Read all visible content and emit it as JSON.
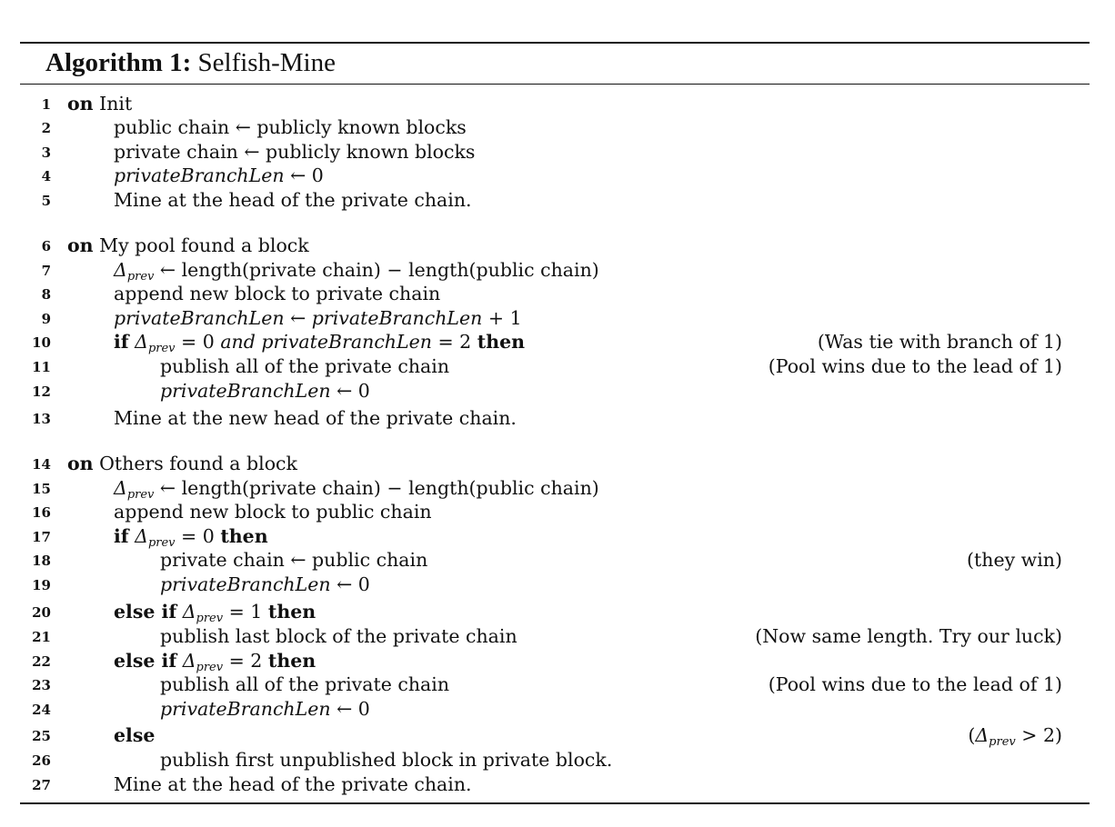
{
  "title": {
    "label": "Algorithm 1:",
    "name": "Selfish-Mine"
  },
  "lines": [
    {
      "n": "1",
      "parts": [
        {
          "k": "kw",
          "t": "on"
        },
        {
          "k": "t",
          "t": " Init"
        }
      ]
    },
    {
      "n": "2",
      "parts": [
        {
          "k": "t",
          "t": "public chain ← publicly known blocks"
        }
      ]
    },
    {
      "n": "3",
      "parts": [
        {
          "k": "t",
          "t": "private chain ← publicly known blocks"
        }
      ]
    },
    {
      "n": "4",
      "parts": [
        {
          "k": "it",
          "t": "privateBranchLen"
        },
        {
          "k": "t",
          "t": " ← 0"
        }
      ]
    },
    {
      "n": "5",
      "parts": [
        {
          "k": "t",
          "t": "Mine at the head of the private chain."
        }
      ]
    },
    {
      "n": "6",
      "parts": [
        {
          "k": "kw",
          "t": "on"
        },
        {
          "k": "t",
          "t": " My pool found a block"
        }
      ]
    },
    {
      "n": "7",
      "parts": [
        {
          "k": "it",
          "t": "Δ"
        },
        {
          "k": "sub",
          "t": "prev"
        },
        {
          "k": "t",
          "t": " ← length(private chain) − length(public chain)"
        }
      ]
    },
    {
      "n": "8",
      "parts": [
        {
          "k": "t",
          "t": "append new block to private chain"
        }
      ]
    },
    {
      "n": "9",
      "parts": [
        {
          "k": "it",
          "t": "privateBranchLen"
        },
        {
          "k": "t",
          "t": " ← "
        },
        {
          "k": "it",
          "t": "privateBranchLen"
        },
        {
          "k": "t",
          "t": " + 1"
        }
      ]
    },
    {
      "n": "10",
      "parts": [
        {
          "k": "kw",
          "t": "if"
        },
        {
          "k": "t",
          "t": " "
        },
        {
          "k": "it",
          "t": "Δ"
        },
        {
          "k": "sub",
          "t": "prev"
        },
        {
          "k": "t",
          "t": " = 0 "
        },
        {
          "k": "it",
          "t": "and privateBranchLen"
        },
        {
          "k": "t",
          "t": " = 2 "
        },
        {
          "k": "kw",
          "t": "then"
        }
      ],
      "comment": [
        {
          "k": "t",
          "t": "(Was tie with branch of 1)"
        }
      ]
    },
    {
      "n": "11",
      "parts": [
        {
          "k": "t",
          "t": "publish all of the private chain"
        }
      ],
      "comment": [
        {
          "k": "t",
          "t": "(Pool wins due to the lead of 1)"
        }
      ]
    },
    {
      "n": "12",
      "parts": [
        {
          "k": "it",
          "t": "privateBranchLen"
        },
        {
          "k": "t",
          "t": " ← 0"
        }
      ]
    },
    {
      "n": "13",
      "parts": [
        {
          "k": "t",
          "t": "Mine at the new head of the private chain."
        }
      ]
    },
    {
      "n": "14",
      "parts": [
        {
          "k": "kw",
          "t": "on"
        },
        {
          "k": "t",
          "t": " Others found a block"
        }
      ]
    },
    {
      "n": "15",
      "parts": [
        {
          "k": "it",
          "t": "Δ"
        },
        {
          "k": "sub",
          "t": "prev"
        },
        {
          "k": "t",
          "t": " ← length(private chain) − length(public chain)"
        }
      ]
    },
    {
      "n": "16",
      "parts": [
        {
          "k": "t",
          "t": "append new block to public chain"
        }
      ]
    },
    {
      "n": "17",
      "parts": [
        {
          "k": "kw",
          "t": "if"
        },
        {
          "k": "t",
          "t": " "
        },
        {
          "k": "it",
          "t": "Δ"
        },
        {
          "k": "sub",
          "t": "prev"
        },
        {
          "k": "t",
          "t": " = 0 "
        },
        {
          "k": "kw",
          "t": "then"
        }
      ]
    },
    {
      "n": "18",
      "parts": [
        {
          "k": "t",
          "t": "private chain ← public chain"
        }
      ],
      "comment": [
        {
          "k": "t",
          "t": "(they win)"
        }
      ]
    },
    {
      "n": "19",
      "parts": [
        {
          "k": "it",
          "t": "privateBranchLen"
        },
        {
          "k": "t",
          "t": " ← 0"
        }
      ]
    },
    {
      "n": "20",
      "parts": [
        {
          "k": "kw",
          "t": "else if"
        },
        {
          "k": "t",
          "t": " "
        },
        {
          "k": "it",
          "t": "Δ"
        },
        {
          "k": "sub",
          "t": "prev"
        },
        {
          "k": "t",
          "t": " = 1 "
        },
        {
          "k": "kw",
          "t": "then"
        }
      ]
    },
    {
      "n": "21",
      "parts": [
        {
          "k": "t",
          "t": "publish last block of the private chain"
        }
      ],
      "comment": [
        {
          "k": "t",
          "t": "(Now same length. Try our luck)"
        }
      ]
    },
    {
      "n": "22",
      "parts": [
        {
          "k": "kw",
          "t": "else if"
        },
        {
          "k": "t",
          "t": " "
        },
        {
          "k": "it",
          "t": "Δ"
        },
        {
          "k": "sub",
          "t": "prev"
        },
        {
          "k": "t",
          "t": " = 2 "
        },
        {
          "k": "kw",
          "t": "then"
        }
      ]
    },
    {
      "n": "23",
      "parts": [
        {
          "k": "t",
          "t": "publish all of the private chain"
        }
      ],
      "comment": [
        {
          "k": "t",
          "t": "(Pool wins due to the lead of 1)"
        }
      ]
    },
    {
      "n": "24",
      "parts": [
        {
          "k": "it",
          "t": "privateBranchLen"
        },
        {
          "k": "t",
          "t": " ← 0"
        }
      ]
    },
    {
      "n": "25",
      "parts": [
        {
          "k": "kw",
          "t": "else"
        }
      ],
      "comment": [
        {
          "k": "t",
          "t": "("
        },
        {
          "k": "it",
          "t": "Δ"
        },
        {
          "k": "sub",
          "t": "prev"
        },
        {
          "k": "t",
          "t": " > 2)"
        }
      ]
    },
    {
      "n": "26",
      "parts": [
        {
          "k": "t",
          "t": "publish first unpublished block in private block."
        }
      ]
    },
    {
      "n": "27",
      "parts": [
        {
          "k": "t",
          "t": "Mine at the head of the private chain."
        }
      ]
    }
  ]
}
